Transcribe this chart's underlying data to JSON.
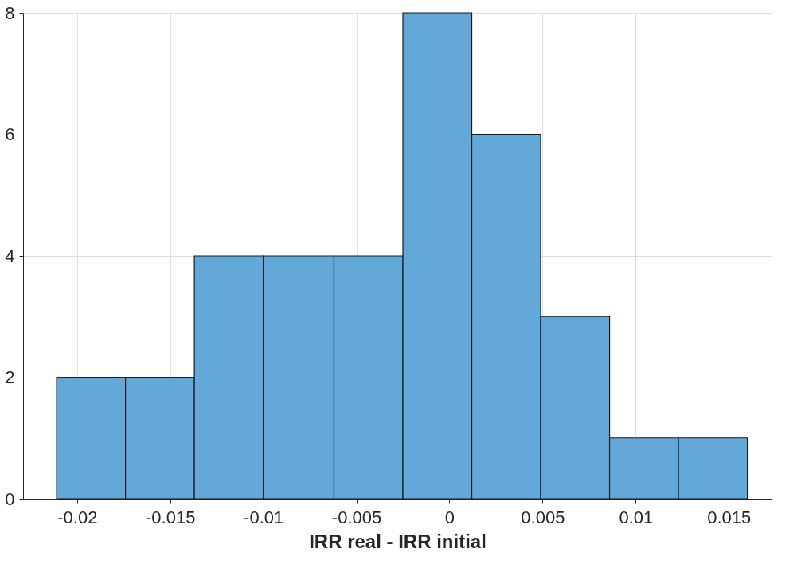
{
  "chart_data": {
    "type": "histogram",
    "xlabel": "IRR real - IRR initial",
    "bins": [
      -0.0211,
      -0.0174,
      -0.0137,
      -0.01,
      -0.0062,
      -0.0025,
      0.0012,
      0.0049,
      0.0086,
      0.0123,
      0.016
    ],
    "values": [
      2,
      2,
      4,
      4,
      4,
      8,
      6,
      3,
      1,
      1
    ],
    "color": "#62a9d9",
    "xlim": [
      -0.0229,
      0.0173
    ],
    "xticks": [
      -0.02,
      -0.015,
      -0.01,
      -0.005,
      0,
      0.005,
      0.01,
      0.015
    ],
    "ylim": [
      0,
      8
    ],
    "yticks": [
      0,
      2,
      4,
      6,
      8
    ],
    "grid": true
  }
}
